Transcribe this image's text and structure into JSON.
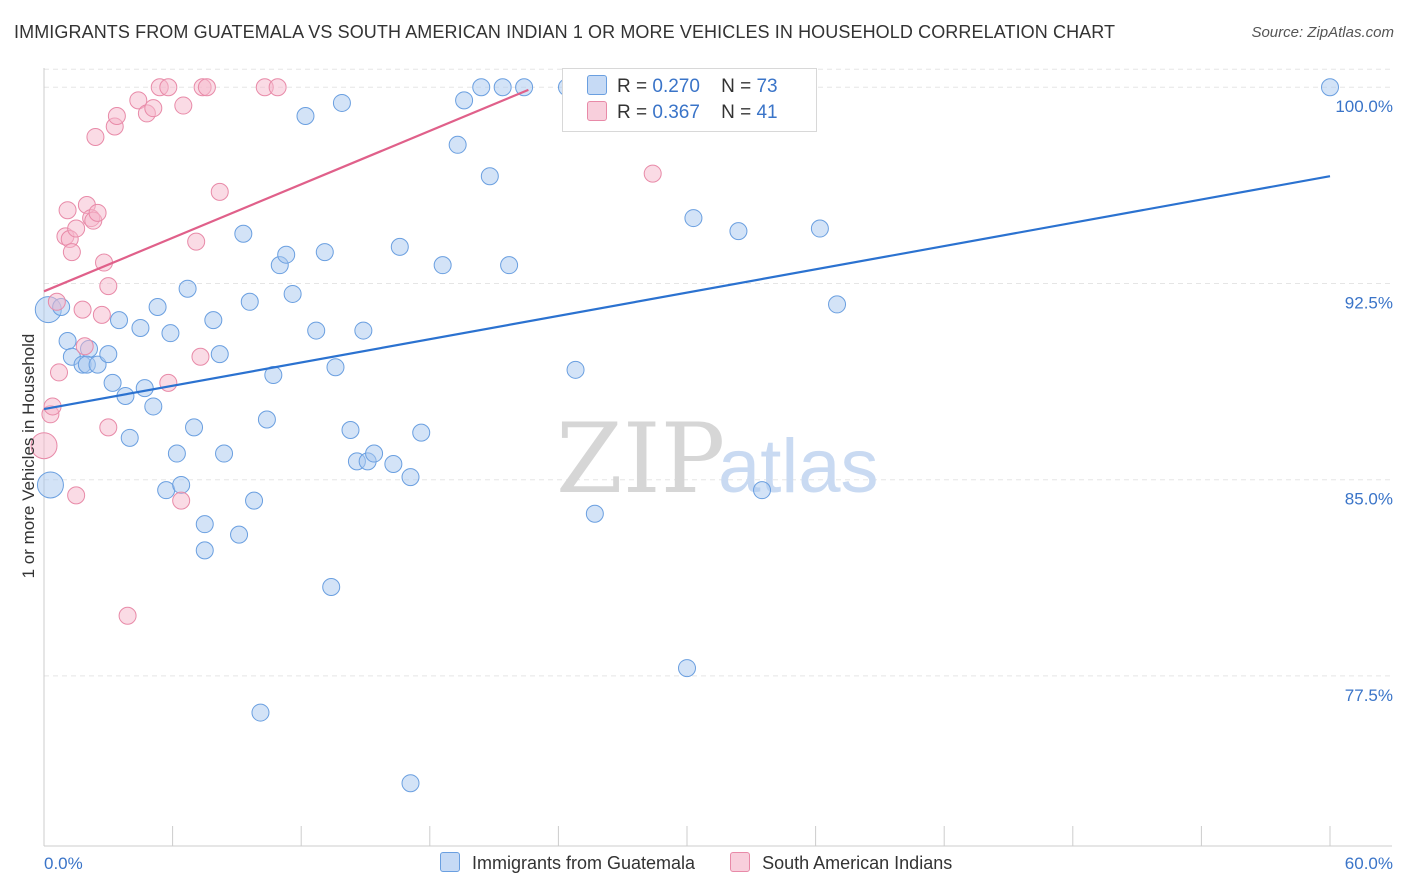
{
  "title": "IMMIGRANTS FROM GUATEMALA VS SOUTH AMERICAN INDIAN 1 OR MORE VEHICLES IN HOUSEHOLD CORRELATION CHART",
  "source": "Source: ZipAtlas.com",
  "watermark": {
    "zip": "ZIP",
    "atlas": "atlas"
  },
  "legend_top": {
    "rows": [
      {
        "r_label": "R =",
        "r_value": "0.270",
        "n_label": "N =",
        "n_value": "73"
      },
      {
        "r_label": "R =",
        "r_value": "0.367",
        "n_label": "N =",
        "n_value": "41"
      }
    ]
  },
  "legend_bottom": [
    "Immigrants from Guatemala",
    "South American Indians"
  ],
  "colors": {
    "blue_fill": "#a8c8f0",
    "blue_stroke": "#6a9fe0",
    "blue_line": "#2b72d0",
    "pink_fill": "#f5b8cc",
    "pink_stroke": "#e88aa8",
    "pink_line": "#e0608a",
    "axis_text": "#3a74c8",
    "grid": "#e5e5e5"
  },
  "chart_data": {
    "type": "scatter",
    "title": "IMMIGRANTS FROM GUATEMALA VS SOUTH AMERICAN INDIAN 1 OR MORE VEHICLES IN HOUSEHOLD CORRELATION CHART",
    "xlabel": "",
    "ylabel": "1 or more Vehicles in Household",
    "xlim": [
      0,
      60
    ],
    "ylim": [
      71,
      101.5
    ],
    "x_tick_labels": [
      "0.0%",
      "60.0%"
    ],
    "y_ticks": [
      77.5,
      85.0,
      92.5,
      100.0
    ],
    "y_tick_labels": [
      "77.5%",
      "85.0%",
      "92.5%",
      "100.0%"
    ],
    "grid": "horizontal dashed",
    "legend_position": "top-center",
    "series": [
      {
        "name": "Immigrants from Guatemala",
        "color": "blue",
        "trend": {
          "x": [
            0,
            60
          ],
          "y": [
            87.7,
            96.6
          ]
        },
        "points": [
          [
            0.2,
            91.5
          ],
          [
            0.3,
            84.8
          ],
          [
            0.8,
            91.6
          ],
          [
            1.1,
            90.3
          ],
          [
            1.3,
            89.7
          ],
          [
            1.8,
            89.4
          ],
          [
            2.1,
            90.0
          ],
          [
            2.0,
            89.4
          ],
          [
            2.5,
            89.4
          ],
          [
            3.0,
            89.8
          ],
          [
            3.2,
            88.7
          ],
          [
            3.5,
            91.1
          ],
          [
            3.8,
            88.2
          ],
          [
            4.0,
            86.6
          ],
          [
            4.5,
            90.8
          ],
          [
            4.7,
            88.5
          ],
          [
            5.1,
            87.8
          ],
          [
            5.3,
            91.6
          ],
          [
            5.7,
            84.6
          ],
          [
            5.9,
            90.6
          ],
          [
            6.2,
            86.0
          ],
          [
            6.4,
            84.8
          ],
          [
            6.7,
            92.3
          ],
          [
            7.0,
            87.0
          ],
          [
            7.5,
            83.3
          ],
          [
            7.5,
            82.3
          ],
          [
            7.9,
            91.1
          ],
          [
            8.2,
            89.8
          ],
          [
            8.4,
            86.0
          ],
          [
            9.1,
            82.9
          ],
          [
            9.3,
            94.4
          ],
          [
            9.6,
            91.8
          ],
          [
            9.8,
            84.2
          ],
          [
            10.1,
            76.1
          ],
          [
            10.4,
            87.3
          ],
          [
            10.7,
            89.0
          ],
          [
            11.0,
            93.2
          ],
          [
            11.3,
            93.6
          ],
          [
            11.6,
            92.1
          ],
          [
            12.2,
            98.9
          ],
          [
            12.7,
            90.7
          ],
          [
            13.1,
            93.7
          ],
          [
            13.4,
            80.9
          ],
          [
            13.6,
            89.3
          ],
          [
            13.9,
            99.4
          ],
          [
            14.3,
            86.9
          ],
          [
            14.6,
            85.7
          ],
          [
            14.9,
            90.7
          ],
          [
            15.1,
            85.7
          ],
          [
            15.4,
            86.0
          ],
          [
            16.3,
            85.6
          ],
          [
            16.6,
            93.9
          ],
          [
            17.1,
            85.1
          ],
          [
            17.6,
            86.8
          ],
          [
            17.1,
            73.4
          ],
          [
            18.6,
            93.2
          ],
          [
            19.3,
            97.8
          ],
          [
            19.6,
            99.5
          ],
          [
            20.4,
            100.0
          ],
          [
            20.8,
            96.6
          ],
          [
            21.4,
            100.0
          ],
          [
            21.7,
            93.2
          ],
          [
            22.4,
            100.0
          ],
          [
            24.8,
            89.2
          ],
          [
            24.4,
            100.0
          ],
          [
            25.7,
            83.7
          ],
          [
            30.0,
            77.8
          ],
          [
            30.3,
            95.0
          ],
          [
            32.4,
            94.5
          ],
          [
            33.5,
            84.6
          ],
          [
            36.2,
            94.6
          ],
          [
            37.0,
            91.7
          ],
          [
            60.0,
            100.0
          ]
        ]
      },
      {
        "name": "South American Indians",
        "color": "pink",
        "trend": {
          "x": [
            0,
            22.6
          ],
          "y": [
            92.2,
            99.9
          ]
        },
        "points": [
          [
            0.0,
            86.3
          ],
          [
            0.3,
            87.5
          ],
          [
            0.4,
            87.8
          ],
          [
            0.6,
            91.8
          ],
          [
            0.7,
            89.1
          ],
          [
            1.0,
            94.3
          ],
          [
            1.1,
            95.3
          ],
          [
            1.2,
            94.2
          ],
          [
            1.3,
            93.7
          ],
          [
            1.5,
            94.6
          ],
          [
            1.5,
            84.4
          ],
          [
            1.8,
            91.5
          ],
          [
            1.9,
            90.1
          ],
          [
            2.0,
            95.5
          ],
          [
            2.2,
            95.0
          ],
          [
            2.3,
            94.9
          ],
          [
            2.4,
            98.1
          ],
          [
            2.5,
            95.2
          ],
          [
            2.7,
            91.3
          ],
          [
            2.8,
            93.3
          ],
          [
            3.0,
            92.4
          ],
          [
            3.0,
            87.0
          ],
          [
            3.3,
            98.5
          ],
          [
            3.4,
            98.9
          ],
          [
            3.9,
            79.8
          ],
          [
            4.4,
            99.5
          ],
          [
            4.8,
            99.0
          ],
          [
            5.1,
            99.2
          ],
          [
            5.4,
            100.0
          ],
          [
            5.8,
            100.0
          ],
          [
            5.8,
            88.7
          ],
          [
            6.4,
            84.2
          ],
          [
            6.5,
            99.3
          ],
          [
            7.1,
            94.1
          ],
          [
            7.3,
            89.7
          ],
          [
            7.4,
            100.0
          ],
          [
            7.6,
            100.0
          ],
          [
            8.2,
            96.0
          ],
          [
            10.3,
            100.0
          ],
          [
            10.9,
            100.0
          ],
          [
            28.4,
            96.7
          ]
        ]
      }
    ]
  }
}
